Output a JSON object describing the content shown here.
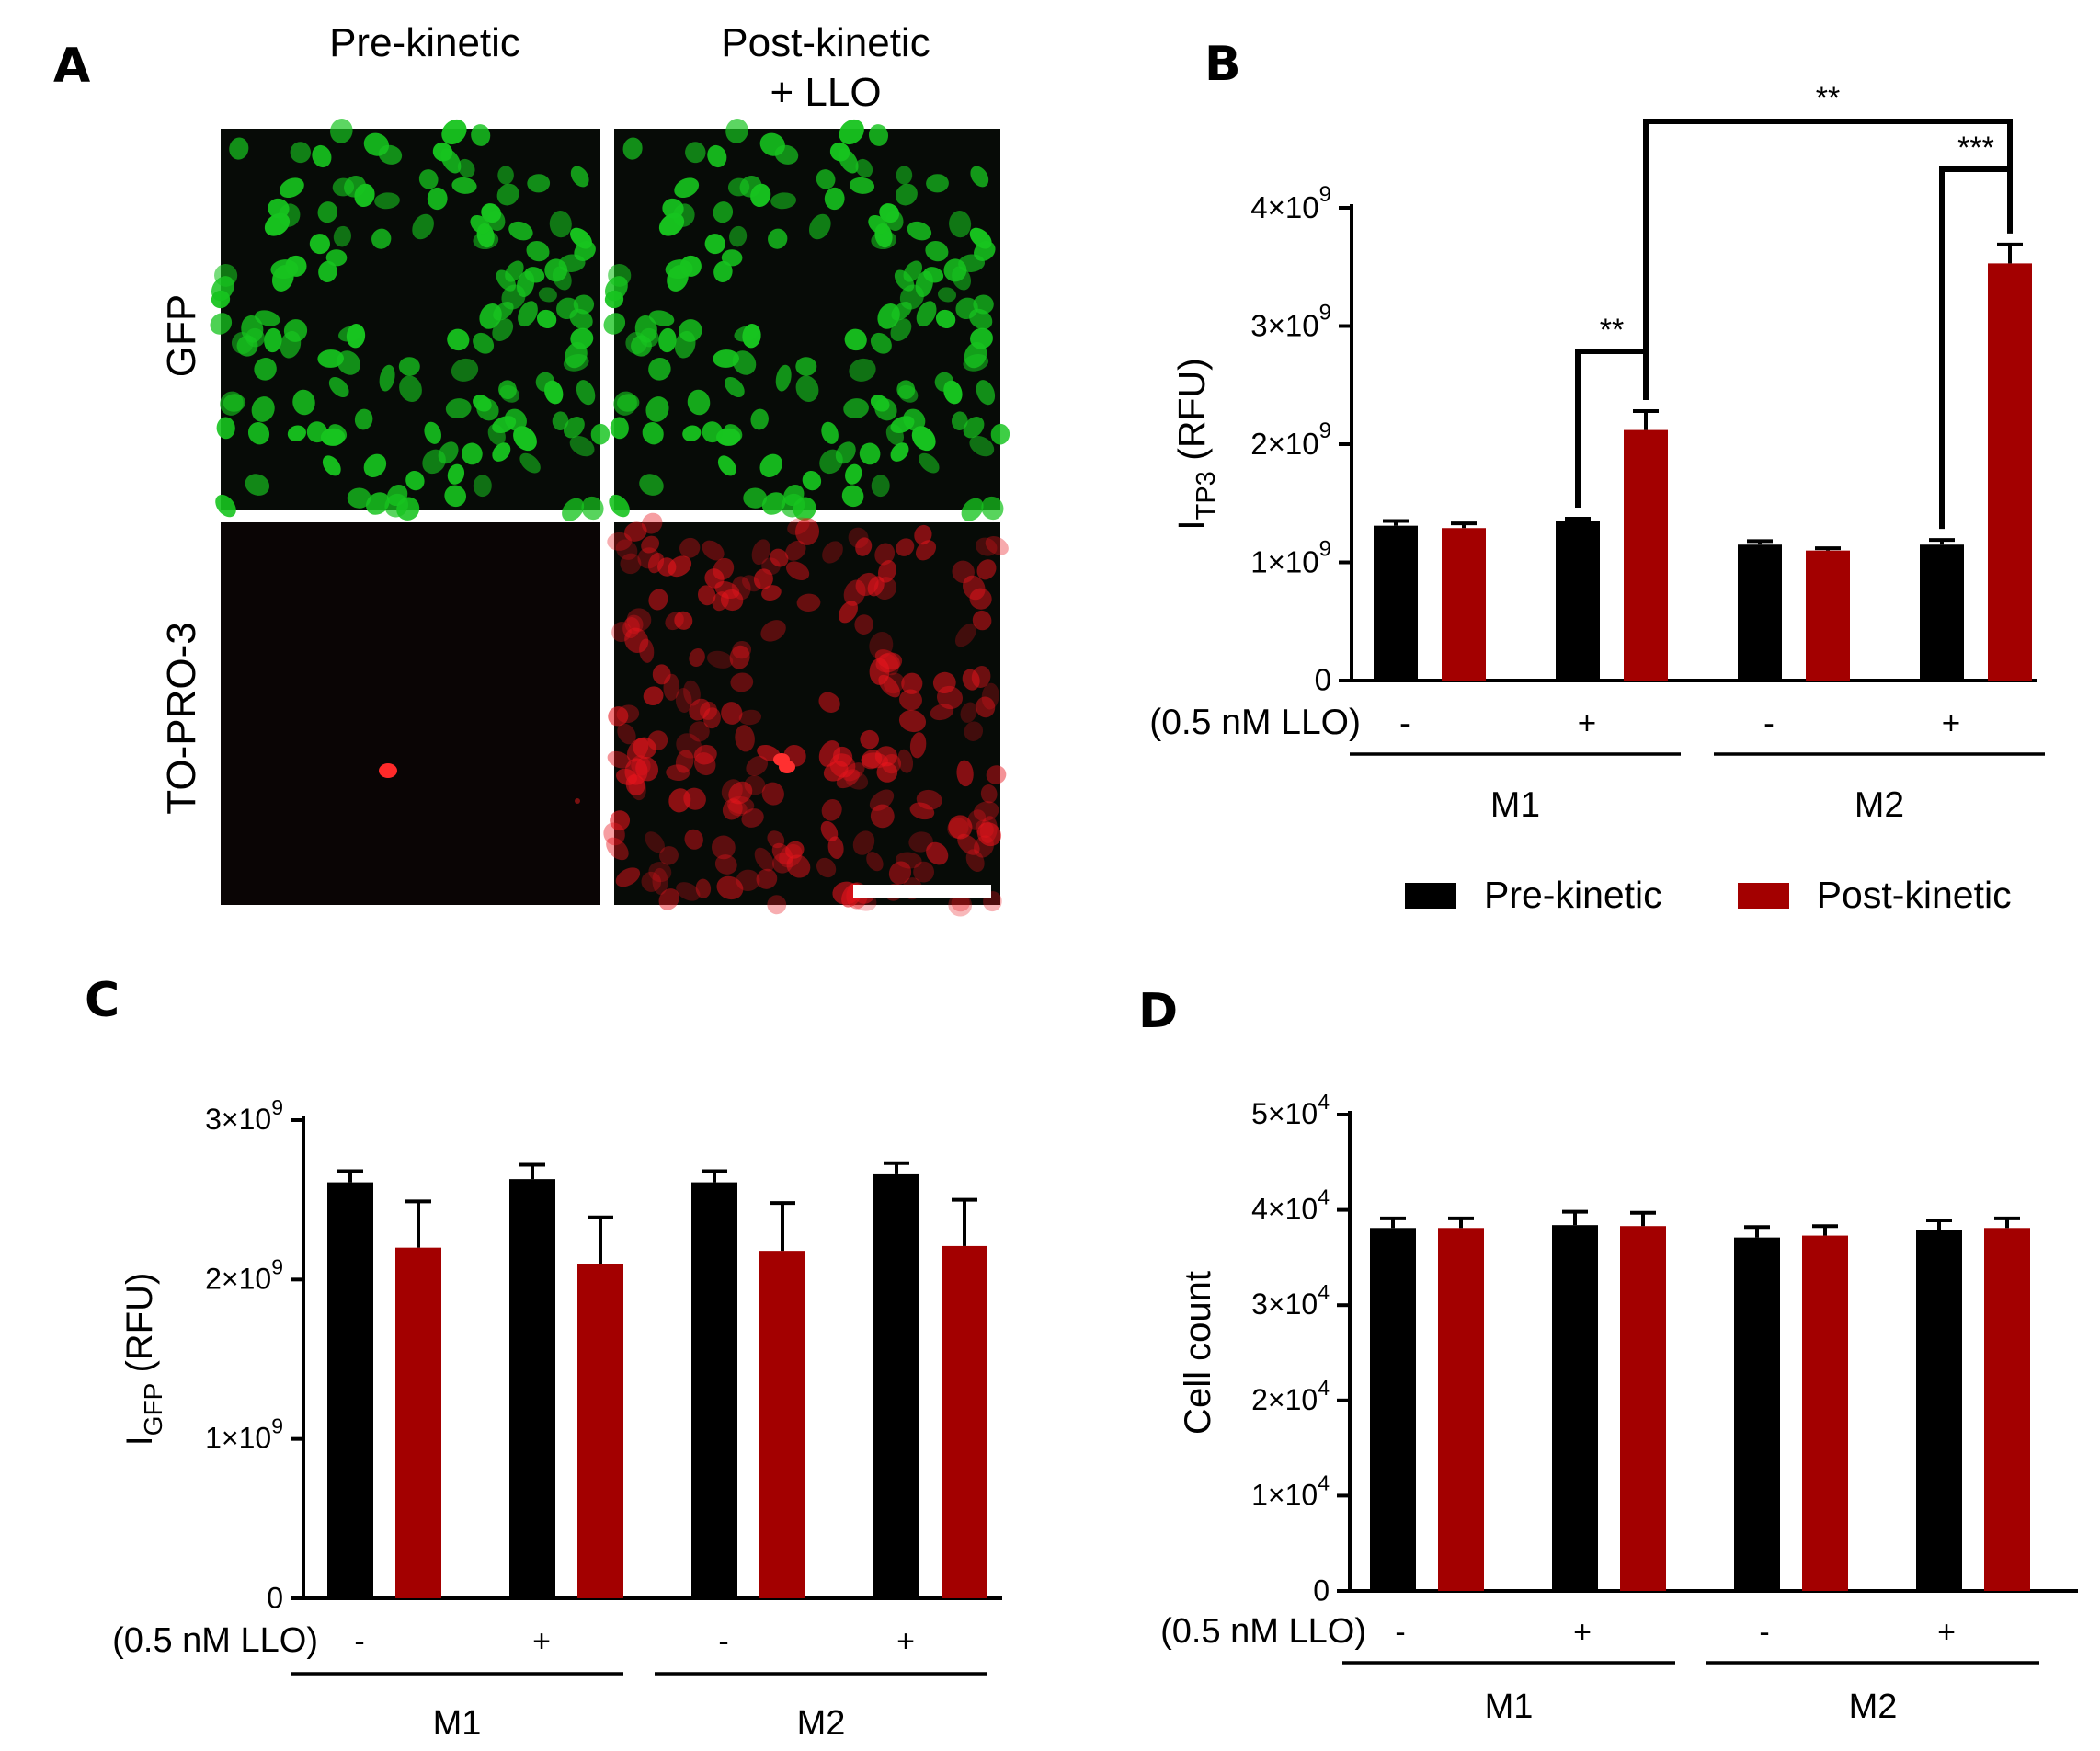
{
  "panel_letters": {
    "a": "A",
    "b": "B",
    "c": "C",
    "d": "D"
  },
  "panel_a": {
    "columns": [
      "Pre-kinetic",
      "Post-kinetic\n+ LLO"
    ],
    "rows": [
      "GFP",
      "TO-PRO-3"
    ],
    "colors": {
      "gfp": "#17c41f",
      "topro": "#e8141c",
      "background": "#070b07"
    }
  },
  "legend": {
    "entries": [
      {
        "name": "Pre-kinetic",
        "color": "#000000"
      },
      {
        "name": "Post-kinetic",
        "color": "#a30000"
      }
    ]
  },
  "chart_data": [
    {
      "id": "B",
      "type": "bar",
      "ylabel_main": "I",
      "ylabel_sub": "TP3",
      "ylabel_unit": "(RFU)",
      "treatment_label": "(0.5 nM LLO)",
      "treatments": [
        "-",
        "+",
        "-",
        "+"
      ],
      "groups": [
        "M1",
        "M2"
      ],
      "ylim": [
        0,
        4000000000
      ],
      "yticks": [
        {
          "value": 0,
          "base": "0",
          "exp": ""
        },
        {
          "value": 1000000000,
          "base": "1×10",
          "exp": "9"
        },
        {
          "value": 2000000000,
          "base": "2×10",
          "exp": "9"
        },
        {
          "value": 3000000000,
          "base": "3×10",
          "exp": "9"
        },
        {
          "value": 4000000000,
          "base": "4×10",
          "exp": "9"
        }
      ],
      "series": [
        {
          "name": "Pre-kinetic",
          "values": [
            1310000000,
            1350000000,
            1150000000,
            1150000000
          ],
          "errors": [
            40000000,
            20000000,
            30000000,
            40000000
          ]
        },
        {
          "name": "Post-kinetic",
          "values": [
            1290000000,
            2120000000,
            1100000000,
            3530000000
          ],
          "errors": [
            40000000,
            160000000,
            20000000,
            160000000
          ]
        }
      ],
      "significance": [
        {
          "from": [
            1,
            0
          ],
          "to": [
            1,
            1
          ],
          "label": "**"
        },
        {
          "from": [
            3,
            0
          ],
          "to": [
            3,
            1
          ],
          "label": "***"
        },
        {
          "from": [
            1,
            1
          ],
          "to": [
            3,
            1
          ],
          "label": "**"
        }
      ]
    },
    {
      "id": "C",
      "type": "bar",
      "ylabel_main": "I",
      "ylabel_sub": "GFP",
      "ylabel_unit": "(RFU)",
      "treatment_label": "(0.5 nM LLO)",
      "treatments": [
        "-",
        "+",
        "-",
        "+"
      ],
      "groups": [
        "M1",
        "M2"
      ],
      "ylim": [
        0,
        3000000000
      ],
      "yticks": [
        {
          "value": 0,
          "base": "0",
          "exp": ""
        },
        {
          "value": 1000000000,
          "base": "1×10",
          "exp": "9"
        },
        {
          "value": 2000000000,
          "base": "2×10",
          "exp": "9"
        },
        {
          "value": 3000000000,
          "base": "3×10",
          "exp": "9"
        }
      ],
      "series": [
        {
          "name": "Pre-kinetic",
          "values": [
            2610000000,
            2630000000,
            2610000000,
            2660000000
          ],
          "errors": [
            70000000,
            90000000,
            70000000,
            70000000
          ]
        },
        {
          "name": "Post-kinetic",
          "values": [
            2200000000,
            2100000000,
            2180000000,
            2210000000
          ],
          "errors": [
            290000000,
            290000000,
            300000000,
            290000000
          ]
        }
      ],
      "significance": []
    },
    {
      "id": "D",
      "type": "bar",
      "ylabel_main": "Cell count",
      "ylabel_sub": "",
      "ylabel_unit": "",
      "treatment_label": "(0.5 nM LLO)",
      "treatments": [
        "-",
        "+",
        "-",
        "+"
      ],
      "groups": [
        "M1",
        "M2"
      ],
      "ylim": [
        0,
        50000
      ],
      "yticks": [
        {
          "value": 0,
          "base": "0",
          "exp": ""
        },
        {
          "value": 10000,
          "base": "1×10",
          "exp": "4"
        },
        {
          "value": 20000,
          "base": "2×10",
          "exp": "4"
        },
        {
          "value": 30000,
          "base": "3×10",
          "exp": "4"
        },
        {
          "value": 40000,
          "base": "4×10",
          "exp": "4"
        },
        {
          "value": 50000,
          "base": "5×10",
          "exp": "4"
        }
      ],
      "series": [
        {
          "name": "Pre-kinetic",
          "values": [
            38100,
            38400,
            37100,
            37900
          ],
          "errors": [
            1000,
            1400,
            1100,
            1000
          ]
        },
        {
          "name": "Post-kinetic",
          "values": [
            38100,
            38300,
            37300,
            38100
          ],
          "errors": [
            1000,
            1400,
            1000,
            1000
          ]
        }
      ],
      "significance": []
    }
  ]
}
